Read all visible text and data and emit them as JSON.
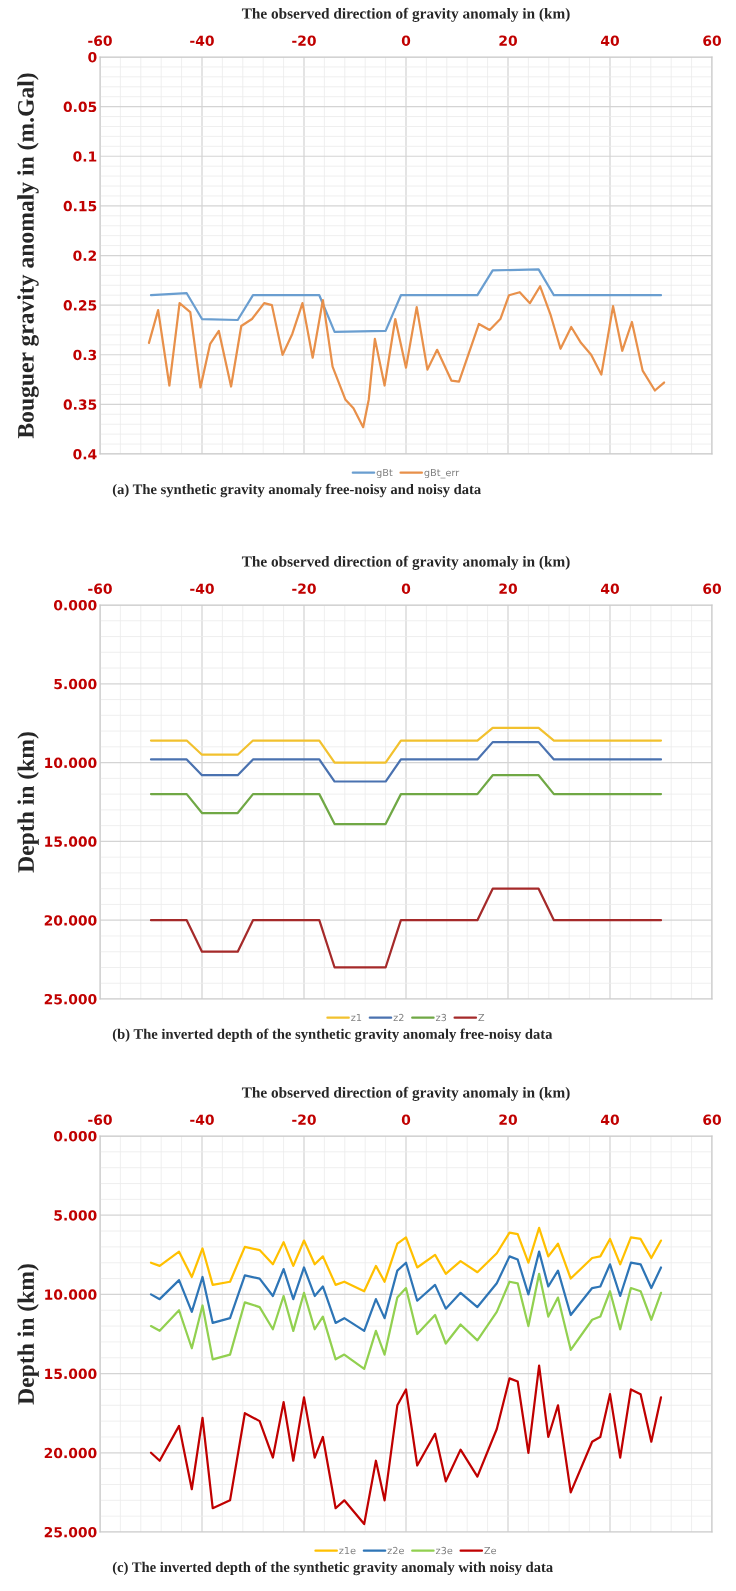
{
  "chart_data": [
    {
      "type": "line",
      "xlabel": "The observed direction of gravity anomaly in (km)",
      "ylabel": "Bouguer gravity anomaly in (m.Gal)",
      "xlim": [
        -60,
        60
      ],
      "xticks": [
        -60,
        -40,
        -20,
        0,
        20,
        40,
        60
      ],
      "ylim": [
        0.4,
        0
      ],
      "yticks": [
        0,
        0.05,
        0.1,
        0.15,
        0.2,
        0.25,
        0.3,
        0.35,
        0.4
      ],
      "grid": true,
      "legend": "bottom",
      "annotations": [
        "(a) The synthetic gravity anomaly free-noisy and noisy data"
      ],
      "series": [
        {
          "name": "gBt",
          "color": "#6a9ed0",
          "x": [
            -50,
            -43,
            -40,
            -33,
            -30,
            -17,
            -14,
            -4,
            -1,
            14,
            17,
            26,
            29,
            50
          ],
          "values": [
            0.24,
            0.238,
            0.264,
            0.265,
            0.24,
            0.24,
            0.277,
            0.276,
            0.24,
            0.24,
            0.215,
            0.214,
            0.24,
            0.24
          ]
        },
        {
          "name": "gBt_err",
          "color": "#e8904a",
          "x": [
            -50.4,
            -48.6,
            -46.4,
            -44.4,
            -42.3,
            -40.3,
            -38.4,
            -36.7,
            -34.3,
            -32.3,
            -30.2,
            -27.8,
            -26.3,
            -24.2,
            -22.3,
            -20.3,
            -18.3,
            -16.3,
            -14.4,
            -11.9,
            -10.3,
            -8.4,
            -7.3,
            -6.1,
            -4.2,
            -2.1,
            0,
            2.1,
            4.2,
            6.1,
            8.9,
            10.4,
            14.3,
            16.4,
            18.5,
            20.2,
            22.3,
            24.3,
            26.3,
            28.3,
            30.3,
            32.4,
            34.3,
            36.3,
            38.3,
            40.6,
            42.4,
            44.3,
            46.4,
            48.8,
            50.6
          ],
          "values": [
            0.288,
            0.255,
            0.331,
            0.248,
            0.257,
            0.333,
            0.289,
            0.276,
            0.332,
            0.271,
            0.264,
            0.248,
            0.25,
            0.3,
            0.279,
            0.248,
            0.303,
            0.245,
            0.312,
            0.345,
            0.354,
            0.373,
            0.345,
            0.284,
            0.331,
            0.264,
            0.313,
            0.252,
            0.315,
            0.295,
            0.326,
            0.327,
            0.269,
            0.275,
            0.264,
            0.24,
            0.237,
            0.248,
            0.231,
            0.259,
            0.294,
            0.272,
            0.288,
            0.3,
            0.32,
            0.251,
            0.296,
            0.267,
            0.316,
            0.336,
            0.328
          ]
        }
      ]
    },
    {
      "type": "line",
      "xlabel": "The observed direction of gravity anomaly in (km)",
      "ylabel": "Depth in (km)",
      "xlim": [
        -60,
        60
      ],
      "xticks": [
        -60,
        -40,
        -20,
        0,
        20,
        40,
        60
      ],
      "ylim": [
        25,
        0
      ],
      "yticks": [
        {
          "value": 0,
          "label": "0.000"
        },
        {
          "value": 5,
          "label": "5.000"
        },
        {
          "value": 10,
          "label": "10.000"
        },
        {
          "value": 15,
          "label": "15.000"
        },
        {
          "value": 20,
          "label": "20.000"
        },
        {
          "value": 25,
          "label": "25.000"
        }
      ],
      "grid": true,
      "legend": "bottom",
      "annotations": [
        "(b) The inverted depth of the synthetic gravity anomaly free-noisy data"
      ],
      "x": [
        -50,
        -43,
        -40,
        -33,
        -30,
        -17,
        -14,
        -4,
        -1,
        14,
        17,
        26,
        29,
        50
      ],
      "series": [
        {
          "name": "z1",
          "color": "#f2c12e",
          "values": [
            8.6,
            8.6,
            9.5,
            9.5,
            8.6,
            8.6,
            10.0,
            10.0,
            8.6,
            8.6,
            7.8,
            7.8,
            8.6,
            8.6
          ]
        },
        {
          "name": "z2",
          "color": "#4a72b0",
          "values": [
            9.8,
            9.8,
            10.8,
            10.8,
            9.8,
            9.8,
            11.2,
            11.2,
            9.8,
            9.8,
            8.7,
            8.7,
            9.8,
            9.8
          ]
        },
        {
          "name": "z3",
          "color": "#70a845",
          "values": [
            12.0,
            12.0,
            13.2,
            13.2,
            12.0,
            12.0,
            13.9,
            13.9,
            12.0,
            12.0,
            10.8,
            10.8,
            12.0,
            12.0
          ]
        },
        {
          "name": "Z",
          "color": "#a52a2a",
          "values": [
            20.0,
            20.0,
            22.0,
            22.0,
            20.0,
            20.0,
            23.0,
            23.0,
            20.0,
            20.0,
            18.0,
            18.0,
            20.0,
            20.0
          ]
        }
      ]
    },
    {
      "type": "line",
      "xlabel": "The observed direction of gravity anomaly in (km)",
      "ylabel": "Depth in (km)",
      "xlim": [
        -60,
        60
      ],
      "xticks": [
        -60,
        -40,
        -20,
        0,
        20,
        40,
        60
      ],
      "ylim": [
        25,
        0
      ],
      "yticks": [
        {
          "value": 0,
          "label": "0.000"
        },
        {
          "value": 5,
          "label": "5.000"
        },
        {
          "value": 10,
          "label": "10.000"
        },
        {
          "value": 15,
          "label": "15.000"
        },
        {
          "value": 20,
          "label": "20.000"
        },
        {
          "value": 25,
          "label": "25.000"
        }
      ],
      "grid": true,
      "legend": "bottom",
      "annotations": [
        "(c) The inverted depth of the synthetic gravity anomaly with noisy data"
      ],
      "x": [
        -50,
        -48.3,
        -44.5,
        -42,
        -39.9,
        -37.9,
        -34.5,
        -31.6,
        -28.7,
        -26.1,
        -24,
        -22.1,
        -20,
        -17.9,
        -16.3,
        -13.8,
        -12.1,
        -8.2,
        -5.9,
        -4.2,
        -1.7,
        0,
        2.2,
        5.7,
        7.8,
        10.7,
        14,
        17.8,
        20.3,
        21.9,
        24,
        26.1,
        27.9,
        29.8,
        32.3,
        36.5,
        38.1,
        40,
        42,
        44.1,
        46,
        48.1,
        50
      ],
      "series": [
        {
          "name": "z1e",
          "color": "#ffc000",
          "values": [
            8.0,
            8.2,
            7.3,
            8.9,
            7.1,
            9.4,
            9.2,
            7.0,
            7.2,
            8.1,
            6.7,
            8.2,
            6.6,
            8.1,
            7.6,
            9.4,
            9.2,
            9.8,
            8.2,
            9.2,
            6.8,
            6.4,
            8.3,
            7.5,
            8.7,
            7.9,
            8.6,
            7.4,
            6.1,
            6.2,
            8.0,
            5.8,
            7.6,
            6.8,
            9.0,
            7.7,
            7.6,
            6.5,
            8.1,
            6.4,
            6.5,
            7.7,
            6.6
          ]
        },
        {
          "name": "z2e",
          "color": "#2e75b6",
          "values": [
            10.0,
            10.3,
            9.1,
            11.1,
            8.9,
            11.8,
            11.5,
            8.8,
            9.0,
            10.1,
            8.4,
            10.3,
            8.3,
            10.1,
            9.5,
            11.8,
            11.5,
            12.3,
            10.3,
            11.5,
            8.5,
            8.0,
            10.4,
            9.4,
            10.9,
            9.9,
            10.8,
            9.3,
            7.6,
            7.8,
            10.0,
            7.3,
            9.5,
            8.5,
            11.3,
            9.6,
            9.5,
            8.1,
            10.1,
            8.0,
            8.1,
            9.6,
            8.3
          ]
        },
        {
          "name": "z3e",
          "color": "#92d050",
          "values": [
            12.0,
            12.3,
            11.0,
            13.4,
            10.7,
            14.1,
            13.8,
            10.5,
            10.8,
            12.2,
            10.1,
            12.3,
            9.9,
            12.2,
            11.4,
            14.1,
            13.8,
            14.7,
            12.3,
            13.8,
            10.2,
            9.6,
            12.5,
            11.3,
            13.1,
            11.9,
            12.9,
            11.1,
            9.2,
            9.3,
            12.0,
            8.7,
            11.4,
            10.2,
            13.5,
            11.6,
            11.4,
            9.8,
            12.2,
            9.6,
            9.8,
            11.6,
            9.9
          ]
        },
        {
          "name": "Ze",
          "color": "#c00000",
          "values": [
            20.0,
            20.5,
            18.3,
            22.3,
            17.8,
            23.5,
            23.0,
            17.5,
            18.0,
            20.3,
            16.8,
            20.5,
            16.5,
            20.3,
            19.0,
            23.5,
            23.0,
            24.5,
            20.5,
            23.0,
            17.0,
            16.0,
            20.8,
            18.8,
            21.8,
            19.8,
            21.5,
            18.5,
            15.3,
            15.5,
            20.0,
            14.5,
            19.0,
            17.0,
            22.5,
            19.3,
            19.0,
            16.3,
            20.3,
            16.0,
            16.3,
            19.3,
            16.5
          ]
        }
      ]
    }
  ]
}
